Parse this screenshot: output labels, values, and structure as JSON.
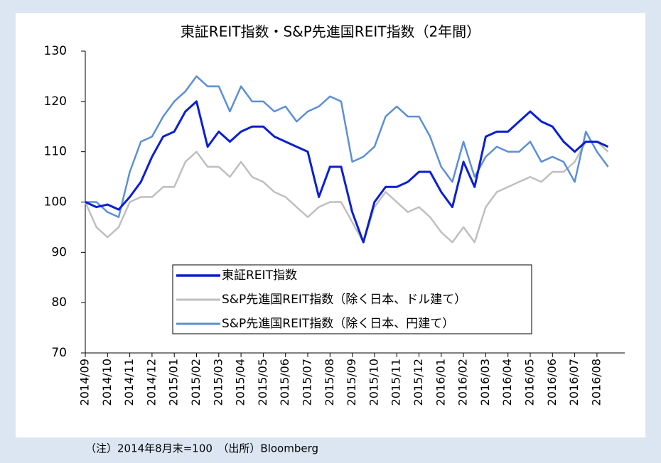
{
  "chart_data": {
    "type": "line",
    "title": "東証REIT指数・S&P先進国REIT指数（2年間）",
    "note": "（注）2014年8月末=100　（出所）Bloomberg",
    "categories": [
      "2014/09",
      null,
      "2014/10",
      null,
      "2014/11",
      null,
      "2014/12",
      null,
      "2015/01",
      null,
      "2015/02",
      null,
      "2015/03",
      null,
      "2015/04",
      null,
      "2015/05",
      null,
      "2015/06",
      null,
      "2015/07",
      null,
      "2015/08",
      null,
      "2015/09",
      null,
      "2015/10",
      null,
      "2015/11",
      null,
      "2015/12",
      null,
      "2016/01",
      null,
      "2016/02",
      null,
      "2016/03",
      null,
      "2016/04",
      null,
      "2016/05",
      null,
      "2016/06",
      null,
      "2016/07",
      null,
      "2016/08",
      null
    ],
    "series": [
      {
        "name": "東証REIT指数",
        "color": "#0a1fd0",
        "width": 3,
        "values": [
          100,
          99,
          99.5,
          98.5,
          101,
          104,
          109,
          113,
          114,
          118,
          120,
          111,
          114,
          112,
          114,
          115,
          115,
          113,
          112,
          111,
          110,
          101,
          107,
          107,
          98,
          92,
          100,
          103,
          103,
          104,
          106,
          106,
          102,
          99,
          108,
          103,
          113,
          114,
          114,
          116,
          118,
          116,
          115,
          112,
          110,
          112,
          112,
          111
        ]
      },
      {
        "name": "S&P先進国REIT指数（除く日本、ドル建て）",
        "color": "#bfbfbf",
        "width": 2.5,
        "values": [
          100,
          95,
          93,
          95,
          100,
          101,
          101,
          103,
          103,
          108,
          110,
          107,
          107,
          105,
          108,
          105,
          104,
          102,
          101,
          99,
          97,
          99,
          100,
          100,
          96,
          92,
          99,
          102,
          100,
          98,
          99,
          97,
          94,
          92,
          95,
          92,
          99,
          102,
          103,
          104,
          105,
          104,
          106,
          106,
          108,
          112,
          112,
          110
        ]
      },
      {
        "name": "S&P先進国REIT指数（除く日本、円建て）",
        "color": "#5b8fd4",
        "width": 2.5,
        "values": [
          100,
          100,
          98,
          97,
          106,
          112,
          113,
          117,
          120,
          122,
          125,
          123,
          123,
          118,
          123,
          120,
          120,
          118,
          119,
          116,
          118,
          119,
          121,
          120,
          108,
          109,
          111,
          117,
          119,
          117,
          117,
          113,
          107,
          104,
          112,
          105,
          109,
          111,
          110,
          110,
          112,
          108,
          109,
          108,
          104,
          114,
          110,
          107
        ]
      }
    ],
    "ylim": [
      70,
      130
    ],
    "yticks": [
      70,
      80,
      90,
      100,
      110,
      120,
      130
    ],
    "grid": true
  }
}
